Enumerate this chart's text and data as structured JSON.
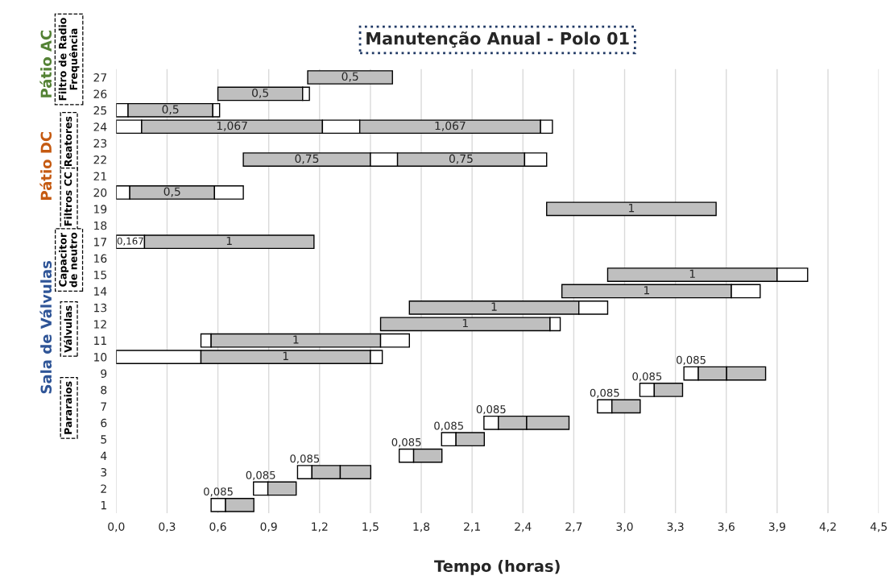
{
  "chart_data": {
    "type": "bar",
    "orientation": "horizontal",
    "title": "Manutenção Anual - Polo 01",
    "xlabel": "Tempo (horas)",
    "categories": [
      "27",
      "26",
      "25",
      "24",
      "23",
      "22",
      "21",
      "20",
      "19",
      "18",
      "17",
      "16",
      "15",
      "14",
      "13",
      "12",
      "11",
      "10",
      "9",
      "8",
      "7",
      "6",
      "5",
      "4",
      "3",
      "2",
      "1"
    ],
    "series": [
      {
        "base": [
          1.13,
          0.6,
          0,
          0,
          null,
          0.75,
          null,
          0,
          2.54,
          null,
          0,
          null,
          2.9,
          2.63,
          1.73,
          1.56,
          0.5,
          0,
          3.35,
          3.09,
          2.84,
          2.17,
          1.92,
          1.67,
          1.07,
          0.81,
          0.56
        ],
        "values": [
          0.5,
          0.5,
          0.07,
          0.15,
          null,
          0.75,
          null,
          0.08,
          1,
          null,
          0.167,
          null,
          1,
          1,
          1,
          1,
          0.06,
          0.5,
          0.085,
          0.085,
          0.085,
          0.085,
          0.085,
          0.085,
          0.085,
          0.085,
          0.085
        ],
        "colors": [
          "#bfbfbf",
          "#bfbfbf",
          "#ffffff",
          "#ffffff",
          null,
          "#bfbfbf",
          null,
          "#ffffff",
          "#bfbfbf",
          null,
          "#ffffff",
          null,
          "#bfbfbf",
          "#bfbfbf",
          "#bfbfbf",
          "#bfbfbf",
          "#ffffff",
          "#ffffff",
          "#ffffff",
          "#ffffff",
          "#ffffff",
          "#ffffff",
          "#ffffff",
          "#ffffff",
          "#ffffff",
          "#ffffff",
          "#ffffff"
        ],
        "value_labels": [
          "0,5",
          "0,5",
          null,
          null,
          null,
          "0,75",
          null,
          null,
          "1",
          null,
          "0,167",
          null,
          "1",
          "1",
          "1",
          "1",
          null,
          null,
          "0,085",
          "0,085",
          "0,085",
          "0,085",
          "0,085",
          "0,085",
          "0,085",
          "0,085",
          "0,085"
        ]
      },
      {
        "base": [
          null,
          1.1,
          0.07,
          0.15,
          null,
          1.5,
          null,
          0.08,
          null,
          null,
          0.167,
          null,
          3.9,
          3.63,
          2.73,
          2.56,
          0.56,
          0.5,
          3.435,
          3.175,
          2.925,
          2.255,
          2.005,
          1.755,
          1.155,
          0.895,
          0.645
        ],
        "values": [
          null,
          0.04,
          0.5,
          1.067,
          null,
          0.16,
          null,
          0.5,
          null,
          null,
          1,
          null,
          0.18,
          0.17,
          0.17,
          0.06,
          1,
          1,
          0.167,
          0.167,
          0.167,
          0.167,
          0.167,
          0.167,
          0.167,
          0.167,
          0.167
        ],
        "colors": [
          null,
          "#ffffff",
          "#bfbfbf",
          "#bfbfbf",
          null,
          "#ffffff",
          null,
          "#bfbfbf",
          null,
          null,
          "#bfbfbf",
          null,
          "#ffffff",
          "#ffffff",
          "#ffffff",
          "#ffffff",
          "#bfbfbf",
          "#bfbfbf",
          "#bfbfbf",
          "#bfbfbf",
          "#bfbfbf",
          "#bfbfbf",
          "#bfbfbf",
          "#bfbfbf",
          "#bfbfbf",
          "#bfbfbf",
          "#bfbfbf"
        ],
        "value_labels": [
          null,
          null,
          "0,5",
          "1,067",
          null,
          null,
          null,
          "0,5",
          null,
          null,
          "1",
          null,
          null,
          null,
          null,
          null,
          "1",
          "1",
          null,
          null,
          null,
          null,
          null,
          null,
          null,
          null,
          null
        ]
      },
      {
        "base": [
          null,
          null,
          0.57,
          1.217,
          null,
          1.66,
          null,
          0.58,
          null,
          null,
          null,
          null,
          null,
          null,
          null,
          null,
          1.56,
          1.5,
          3.602,
          null,
          null,
          2.422,
          null,
          null,
          1.322,
          null,
          null
        ],
        "values": [
          null,
          null,
          0.04,
          0.22,
          null,
          0.75,
          null,
          0.17,
          null,
          null,
          null,
          null,
          null,
          null,
          null,
          null,
          0.17,
          0.07,
          0.23,
          null,
          null,
          0.25,
          null,
          null,
          0.18,
          null,
          null
        ],
        "colors": [
          null,
          null,
          "#ffffff",
          "#ffffff",
          null,
          "#bfbfbf",
          null,
          "#ffffff",
          null,
          null,
          null,
          null,
          null,
          null,
          null,
          null,
          "#ffffff",
          "#ffffff",
          "#bfbfbf",
          null,
          null,
          "#bfbfbf",
          null,
          null,
          "#bfbfbf",
          null,
          null
        ],
        "value_labels": [
          null,
          null,
          null,
          null,
          null,
          "0,75",
          null,
          null,
          null,
          null,
          null,
          null,
          null,
          null,
          null,
          null,
          null,
          null,
          null,
          null,
          null,
          null,
          null,
          null,
          null,
          null,
          null
        ]
      },
      {
        "base": [
          null,
          null,
          null,
          1.437,
          null,
          2.41,
          null,
          null,
          null,
          null,
          null,
          null,
          null,
          null,
          null,
          null,
          null,
          null,
          null,
          null,
          null,
          null,
          null,
          null,
          null,
          null,
          null
        ],
        "values": [
          null,
          null,
          null,
          1.067,
          null,
          0.13,
          null,
          null,
          null,
          null,
          null,
          null,
          null,
          null,
          null,
          null,
          null,
          null,
          null,
          null,
          null,
          null,
          null,
          null,
          null,
          null,
          null
        ],
        "colors": [
          null,
          null,
          null,
          "#bfbfbf",
          null,
          "#ffffff",
          null,
          null,
          null,
          null,
          null,
          null,
          null,
          null,
          null,
          null,
          null,
          null,
          null,
          null,
          null,
          null,
          null,
          null,
          null,
          null,
          null
        ],
        "value_labels": [
          null,
          null,
          null,
          "1,067",
          null,
          null,
          null,
          null,
          null,
          null,
          null,
          null,
          null,
          null,
          null,
          null,
          null,
          null,
          null,
          null,
          null,
          null,
          null,
          null,
          null,
          null,
          null
        ]
      },
      {
        "base": [
          null,
          null,
          null,
          2.504,
          null,
          null,
          null,
          null,
          null,
          null,
          null,
          null,
          null,
          null,
          null,
          null,
          null,
          null,
          null,
          null,
          null,
          null,
          null,
          null,
          null,
          null,
          null
        ],
        "values": [
          null,
          null,
          null,
          0.07,
          null,
          null,
          null,
          null,
          null,
          null,
          null,
          null,
          null,
          null,
          null,
          null,
          null,
          null,
          null,
          null,
          null,
          null,
          null,
          null,
          null,
          null,
          null
        ],
        "colors": [
          null,
          null,
          null,
          "#ffffff",
          null,
          null,
          null,
          null,
          null,
          null,
          null,
          null,
          null,
          null,
          null,
          null,
          null,
          null,
          null,
          null,
          null,
          null,
          null,
          null,
          null,
          null,
          null
        ]
      }
    ],
    "xlim": [
      0,
      4.5
    ],
    "xticks": [
      {
        "value": 0,
        "label": "0,0"
      },
      {
        "value": 0.3,
        "label": "0,3"
      },
      {
        "value": 0.6,
        "label": "0,6"
      },
      {
        "value": 0.9,
        "label": "0,9"
      },
      {
        "value": 1.2,
        "label": "1,2"
      },
      {
        "value": 1.5,
        "label": "1,5"
      },
      {
        "value": 1.8,
        "label": "1,8"
      },
      {
        "value": 2.1,
        "label": "2,1"
      },
      {
        "value": 2.4,
        "label": "2,4"
      },
      {
        "value": 2.7,
        "label": "2,7"
      },
      {
        "value": 3.0,
        "label": "3,0"
      },
      {
        "value": 3.3,
        "label": "3,3"
      },
      {
        "value": 3.6,
        "label": "3,6"
      },
      {
        "value": 3.9,
        "label": "3,9"
      },
      {
        "value": 4.2,
        "label": "4,2"
      },
      {
        "value": 4.5,
        "label": "4,5"
      }
    ],
    "grid": "x",
    "annotations": [
      "Pátio AC",
      "Pátio DC",
      "Sala de Válvulas",
      "Filtro de Radio\nFrequência",
      "Reatores",
      "Filtros CC",
      "Capacitor\nde neutro",
      "Válvulas",
      "Pararaios"
    ]
  }
}
